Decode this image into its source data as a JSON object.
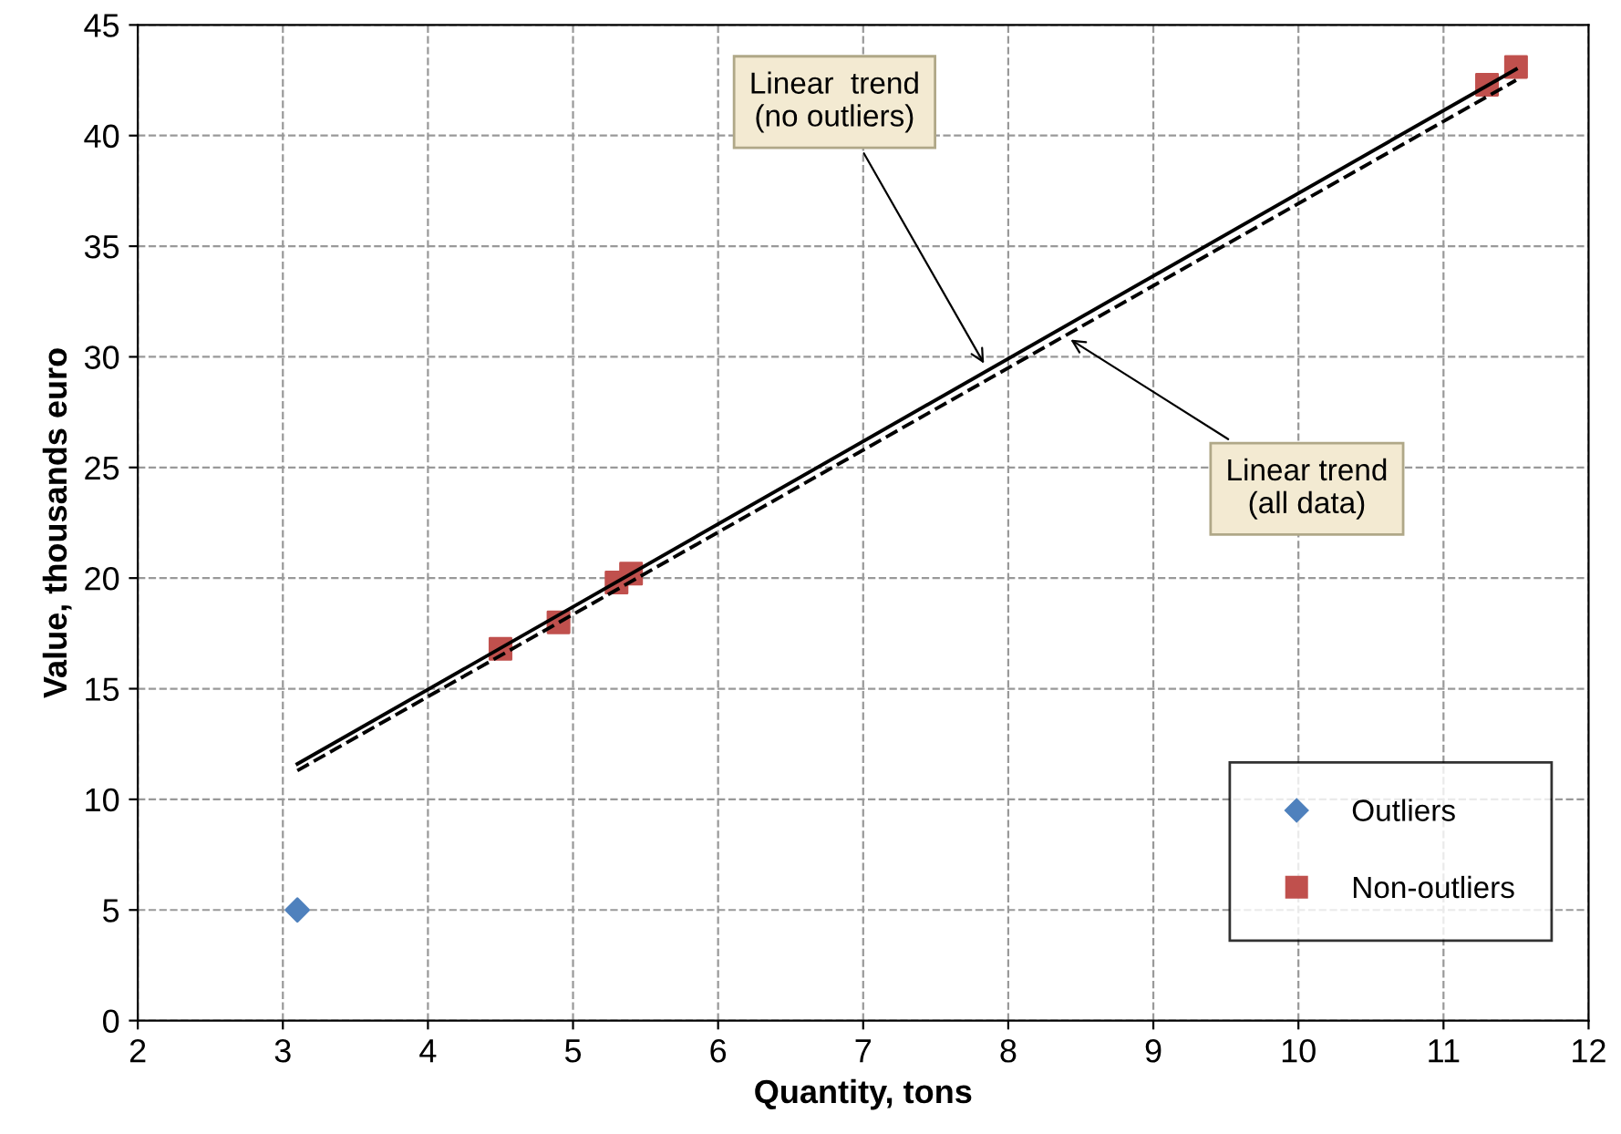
{
  "chart_data": {
    "type": "scatter",
    "xlabel": "Quantity, tons",
    "ylabel": "Value, thousands euro",
    "xlim": [
      2,
      12
    ],
    "xticks": [
      2,
      3,
      4,
      5,
      6,
      7,
      8,
      9,
      10,
      11,
      12
    ],
    "ylim": [
      0,
      45
    ],
    "yticks": [
      0,
      5,
      10,
      15,
      20,
      25,
      30,
      35,
      40,
      45
    ],
    "grid": true,
    "legend": "bottom right",
    "series": [
      {
        "name": "Outliers",
        "marker": "diamond",
        "color": "#4f81bd",
        "x": [
          3.1
        ],
        "values": [
          5.0
        ]
      },
      {
        "name": "Non-outliers",
        "marker": "square",
        "color": "#c0504d",
        "x": [
          4.5,
          4.9,
          5.3,
          5.4,
          11.3,
          11.5
        ],
        "values": [
          16.8,
          18.0,
          19.8,
          20.2,
          42.3,
          43.1
        ]
      },
      {
        "type": "line",
        "line_style": "solid",
        "color": "#000000",
        "x": [
          3.1,
          11.5
        ],
        "values": [
          11.6,
          43.0
        ]
      },
      {
        "type": "line",
        "line_style": "dashed",
        "color": "#000000",
        "x": [
          3.1,
          11.5
        ],
        "values": [
          11.3,
          42.5
        ]
      }
    ],
    "annotations": [
      {
        "text": "Linear  trend\n(no outliers)",
        "x": 7.85,
        "y": 29.5
      },
      {
        "text": "Linear trend\n(all data)",
        "x": 8.4,
        "y": 30.9
      }
    ]
  }
}
